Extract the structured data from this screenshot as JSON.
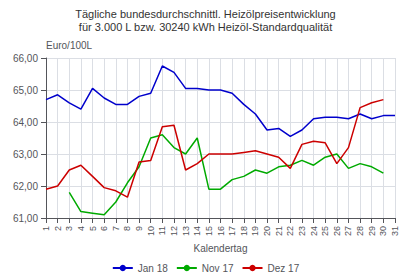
{
  "chart_data": {
    "type": "line",
    "title": "Tägliche bundesdurchschnittl. Heizölpreisentwicklung",
    "subtitle": "für 3.000 L bzw. 30240 kWh Heizöl-Standardqualität",
    "x_label": "Kalendertag",
    "y_label": "Euro/100L",
    "x": [
      1,
      2,
      3,
      4,
      5,
      6,
      7,
      8,
      9,
      10,
      11,
      12,
      13,
      14,
      15,
      16,
      17,
      18,
      19,
      20,
      21,
      22,
      23,
      24,
      25,
      26,
      27,
      28,
      29,
      30,
      31
    ],
    "series": [
      {
        "name": "Jan 18",
        "color": "#0000CC",
        "values": [
          64.7,
          64.85,
          64.6,
          64.4,
          65.05,
          64.75,
          64.55,
          64.55,
          64.8,
          64.9,
          65.75,
          65.55,
          65.05,
          65.05,
          65.0,
          65.0,
          64.9,
          64.55,
          64.25,
          63.75,
          63.8,
          63.55,
          63.75,
          64.1,
          64.15,
          64.15,
          64.1,
          64.25,
          64.1,
          64.2,
          64.2
        ]
      },
      {
        "name": "Nov 17",
        "color": "#00AA00",
        "values": [
          null,
          null,
          61.8,
          61.2,
          61.15,
          61.1,
          61.5,
          62.1,
          62.6,
          63.5,
          63.6,
          63.2,
          63.0,
          63.5,
          61.9,
          61.9,
          62.2,
          62.3,
          62.5,
          62.4,
          62.6,
          62.65,
          62.8,
          62.65,
          62.9,
          63.0,
          62.55,
          62.7,
          62.6,
          62.4,
          null
        ]
      },
      {
        "name": "Dez 17",
        "color": "#CC0000",
        "values": [
          61.9,
          62.0,
          62.5,
          62.65,
          62.3,
          61.95,
          61.85,
          61.65,
          62.75,
          62.8,
          63.85,
          63.9,
          62.5,
          62.7,
          63.0,
          63.0,
          63.0,
          63.05,
          63.1,
          63.0,
          62.9,
          62.55,
          63.3,
          63.4,
          63.35,
          62.7,
          63.2,
          64.45,
          64.6,
          64.7,
          null
        ]
      }
    ],
    "xlim": [
      1,
      31
    ],
    "xticks": [
      1,
      2,
      3,
      4,
      5,
      6,
      7,
      8,
      9,
      10,
      11,
      12,
      13,
      14,
      15,
      16,
      17,
      18,
      19,
      20,
      21,
      22,
      23,
      24,
      25,
      26,
      27,
      28,
      29,
      30,
      31
    ],
    "ylim": [
      61.0,
      66.0
    ],
    "yticks": [
      {
        "value": 61.0,
        "label": "61,00"
      },
      {
        "value": 62.0,
        "label": "62,00"
      },
      {
        "value": 63.0,
        "label": "63,00"
      },
      {
        "value": 64.0,
        "label": "64,00"
      },
      {
        "value": 65.0,
        "label": "65,00"
      },
      {
        "value": 66.0,
        "label": "66,00"
      }
    ],
    "grid": true,
    "legend": "bottom"
  }
}
